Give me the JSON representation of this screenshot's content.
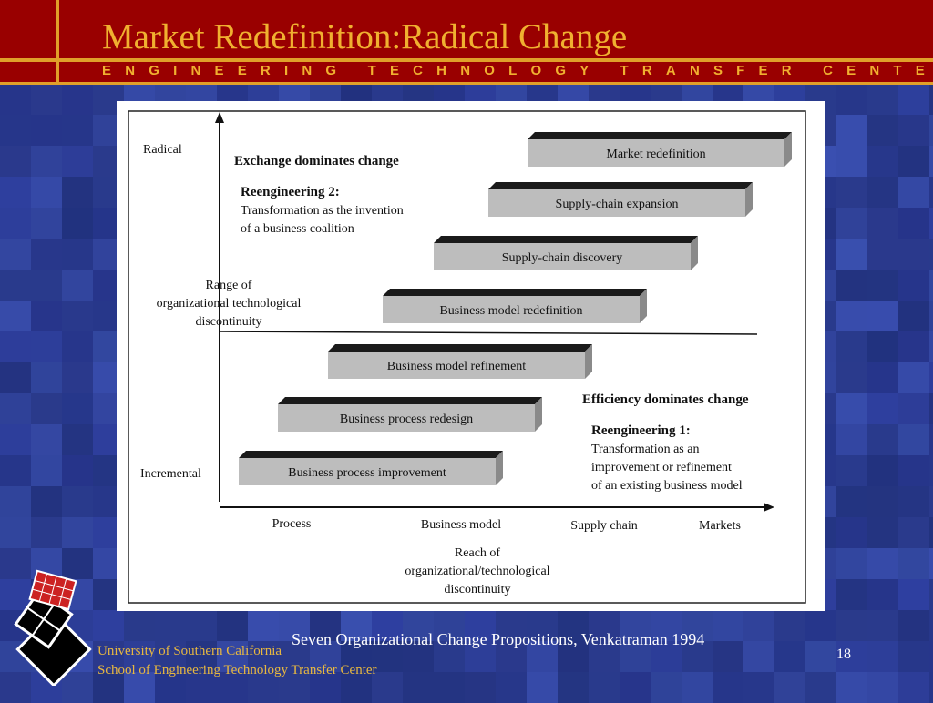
{
  "slide": {
    "title": "Market Redefinition:Radical Change",
    "subtitle": "ENGINEERING TECHNOLOGY TRANSFER CENTER",
    "caption": "Seven Organizational Change Propositions, Venkatraman 1994",
    "page_number": "18",
    "footer": {
      "line1": "University of Southern California",
      "line2": "School of Engineering Technology Transfer Center"
    },
    "colors": {
      "header": "#990000",
      "accent_gold": "#e0a02a",
      "background": "#2a3a8c"
    },
    "logo_icon": "usc-checkered-diamond-logo"
  },
  "figure": {
    "y_axis": {
      "top_label": "Radical",
      "bottom_label": "Incremental",
      "title_lines": [
        "Range of",
        "organizational technological",
        "discontinuity"
      ]
    },
    "x_axis": {
      "categories": [
        "Process",
        "Business model",
        "Supply chain",
        "Markets"
      ],
      "title_lines": [
        "Reach of",
        "organizational/technological",
        "discontinuity"
      ]
    },
    "upper_zone": {
      "heading": "Exchange dominates change",
      "subheading": "Reengineering 2:",
      "description_lines": [
        "Transformation as the invention",
        "of a business coalition"
      ]
    },
    "lower_zone": {
      "heading": "Efficiency dominates change",
      "subheading": "Reengineering 1:",
      "description_lines": [
        "Transformation as an",
        "improvement or refinement",
        "of an existing business model"
      ]
    },
    "steps": [
      "Business process improvement",
      "Business process redesign",
      "Business model refinement",
      "Business model redefinition",
      "Supply-chain discovery",
      "Supply-chain expansion",
      "Market redefinition"
    ]
  }
}
